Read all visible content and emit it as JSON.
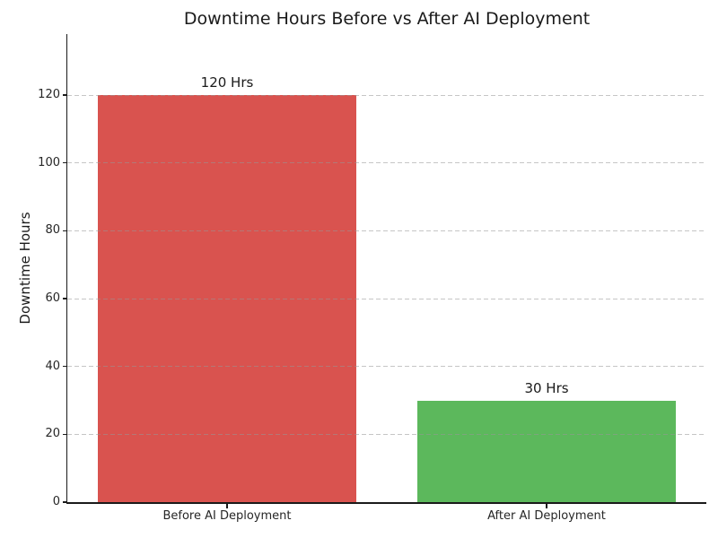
{
  "figure": {
    "background": "#ffffff",
    "axis_color": "#1a1a1a",
    "grid_color": "#c8c8c8"
  },
  "chart_data": {
    "type": "bar",
    "title": "Downtime Hours Before vs After AI Deployment",
    "categories": [
      "Before AI Deployment",
      "After AI Deployment"
    ],
    "values": [
      120,
      30
    ],
    "bar_labels": [
      "120 Hrs",
      "30 Hrs"
    ],
    "bar_colors": [
      "#d9534f",
      "#5cb85c"
    ],
    "xlabel": "",
    "ylabel": "Downtime Hours",
    "yticks": [
      0,
      20,
      40,
      60,
      80,
      100,
      120
    ],
    "ylim": [
      0,
      138
    ],
    "grid": {
      "axis": "y",
      "style": "dashed",
      "above_bars": true
    },
    "legend": null
  }
}
